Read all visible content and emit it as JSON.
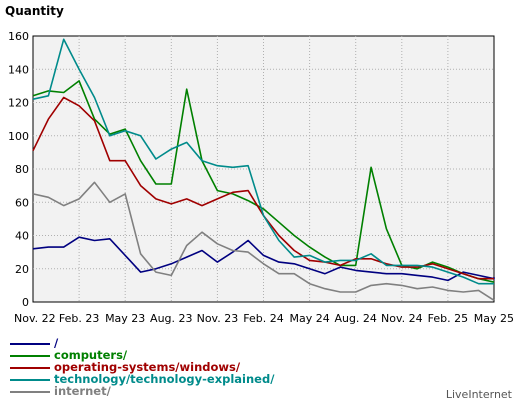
{
  "chart_data": {
    "type": "line",
    "title": "Quantity",
    "ylim": [
      0,
      160
    ],
    "yticks": [
      0,
      20,
      40,
      60,
      80,
      100,
      120,
      140,
      160
    ],
    "x_tick_labels": [
      "Nov. 22",
      "Feb. 23",
      "May 23",
      "Aug. 23",
      "Nov. 23",
      "Feb. 24",
      "May 24",
      "Aug. 24",
      "Nov. 24",
      "Feb. 25",
      "May 25"
    ],
    "grid": true,
    "points_per_tick": 3,
    "series": [
      {
        "name": "/",
        "color": "#000080",
        "values": [
          32,
          33,
          33,
          39,
          37,
          38,
          28,
          18,
          20,
          23,
          27,
          31,
          24,
          30,
          37,
          28,
          24,
          23,
          20,
          17,
          21,
          19,
          18,
          17,
          17,
          16,
          15,
          13,
          18,
          16,
          14,
          15
        ]
      },
      {
        "name": "computers/",
        "color": "#008000",
        "values": [
          124,
          127,
          126,
          133,
          110,
          101,
          104,
          85,
          71,
          71,
          128,
          85,
          67,
          65,
          61,
          56,
          48,
          40,
          33,
          27,
          22,
          22,
          81,
          44,
          22,
          20,
          24,
          21,
          17,
          14,
          12
        ]
      },
      {
        "name": "operating-systems/windows/",
        "color": "#a00000",
        "values": [
          91,
          110,
          123,
          118,
          109,
          85,
          85,
          70,
          62,
          59,
          62,
          58,
          62,
          66,
          67,
          52,
          40,
          31,
          25,
          24,
          22,
          26,
          26,
          23,
          21,
          21,
          23,
          20,
          17,
          14,
          14
        ]
      },
      {
        "name": "technology/technology-explained/",
        "color": "#008b8b",
        "values": [
          122,
          124,
          158,
          140,
          123,
          100,
          103,
          100,
          86,
          92,
          96,
          85,
          82,
          81,
          82,
          52,
          37,
          27,
          28,
          24,
          25,
          25,
          29,
          22,
          22,
          22,
          21,
          18,
          15,
          11,
          11
        ]
      },
      {
        "name": "internet/",
        "color": "#808080",
        "values": [
          65,
          63,
          58,
          62,
          72,
          60,
          65,
          29,
          18,
          16,
          34,
          42,
          35,
          31,
          30,
          23,
          17,
          17,
          11,
          8,
          6,
          6,
          10,
          11,
          10,
          8,
          9,
          7,
          6,
          7,
          1
        ]
      }
    ]
  },
  "legend": {
    "items": [
      {
        "label": "/",
        "color": "#000080"
      },
      {
        "label": "computers/",
        "color": "#008000"
      },
      {
        "label": "operating-systems/windows/",
        "color": "#a00000"
      },
      {
        "label": "technology/technology-explained/",
        "color": "#008b8b"
      },
      {
        "label": "internet/",
        "color": "#808080"
      }
    ]
  },
  "brand": "LiveInternet"
}
